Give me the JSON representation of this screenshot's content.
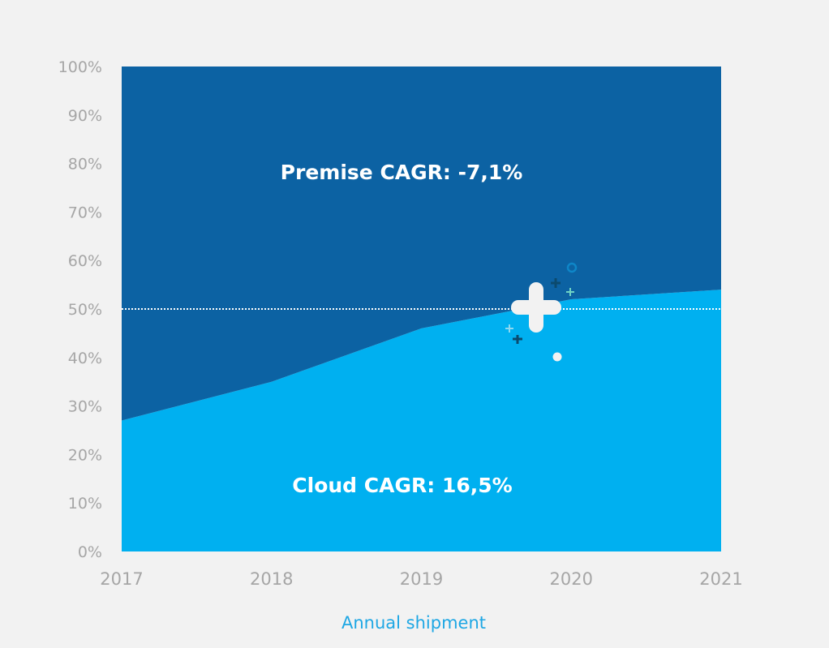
{
  "chart_data": {
    "type": "area",
    "stacked": "percent",
    "categories": [
      "2017",
      "2018",
      "2019",
      "2020",
      "2021"
    ],
    "series": [
      {
        "name": "Cloud",
        "values": [
          27,
          35,
          46,
          52,
          54
        ],
        "color": "#00b0f0"
      },
      {
        "name": "Premise",
        "values": [
          73,
          65,
          54,
          48,
          46
        ],
        "color": "#0c62a3"
      }
    ],
    "xlabel": "Annual shipment",
    "ylabel": "",
    "ylim": [
      0,
      100
    ],
    "yticks": [
      "0%",
      "10%",
      "20%",
      "30%",
      "40%",
      "50%",
      "60%",
      "70%",
      "80%",
      "90%",
      "100%"
    ],
    "reference_line": {
      "value": 50,
      "style": "dotted",
      "color": "#ffffff"
    },
    "annotations": [
      {
        "text": "Premise CAGR: -7,1%",
        "series": "Premise"
      },
      {
        "text": "Cloud CAGR: 16,5%",
        "series": "Cloud"
      }
    ],
    "grid": false,
    "legend": "none",
    "background": "#f2f2f2",
    "decoration_icons": [
      "plus-sparkle-icon",
      "circle-icon"
    ]
  }
}
